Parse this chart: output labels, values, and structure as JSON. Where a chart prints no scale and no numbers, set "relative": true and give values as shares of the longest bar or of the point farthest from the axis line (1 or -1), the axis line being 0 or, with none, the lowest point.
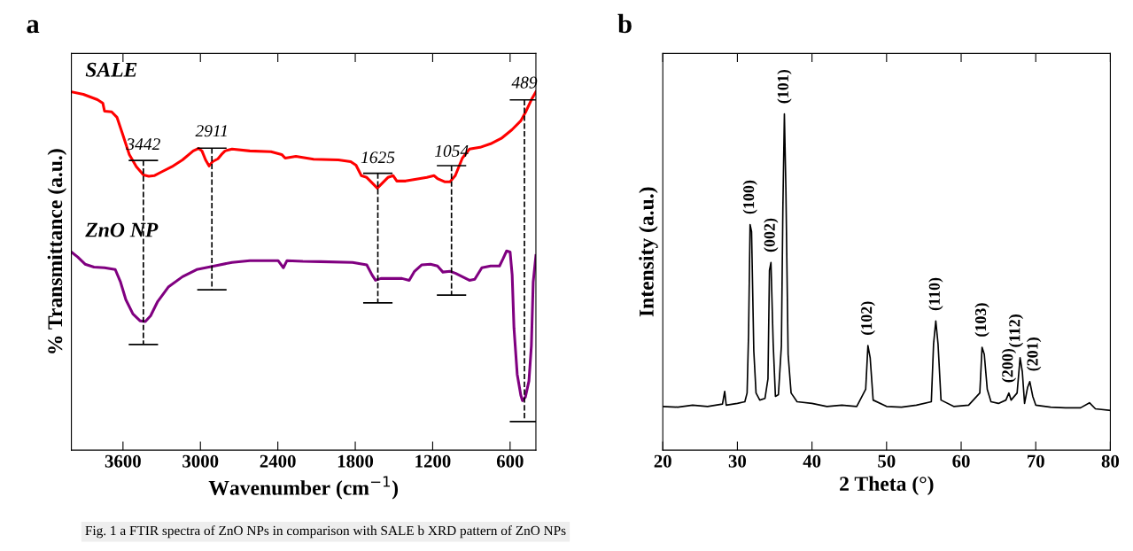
{
  "chart_data": [
    {
      "type": "line",
      "title": "a",
      "xlabel": "Wavenumber (cm$^{−1}$)",
      "ylabel": "% Transmittance (a.u.)",
      "relative": true,
      "tick_labels": "x",
      "grid": false,
      "legend": false,
      "marker": "none",
      "line_style": "solid",
      "xlim": [
        4000,
        400
      ],
      "xticks": [
        3600,
        3000,
        2400,
        1800,
        1200,
        600
      ],
      "series": [
        {
          "name": "SALE",
          "color": "#ff0000",
          "x": [
            4000,
            3907,
            3798,
            3756,
            3743,
            3688,
            3647,
            3605,
            3551,
            3496,
            3441,
            3400,
            3358,
            3304,
            3221,
            3139,
            3056,
            3015,
            2988,
            2960,
            2933,
            2906,
            2864,
            2837,
            2809,
            2755,
            2617,
            2453,
            2370,
            2343,
            2260,
            2123,
            1931,
            1835,
            1794,
            1753,
            1711,
            1670,
            1629,
            1588,
            1547,
            1506,
            1478,
            1410,
            1327,
            1245,
            1190,
            1163,
            1108,
            1066,
            1025,
            970,
            915,
            833,
            751,
            668,
            586,
            517,
            476,
            435,
            400
          ],
          "values": [
            1.0,
            0.993,
            0.978,
            0.968,
            0.946,
            0.944,
            0.929,
            0.884,
            0.825,
            0.791,
            0.768,
            0.764,
            0.766,
            0.776,
            0.791,
            0.81,
            0.835,
            0.842,
            0.835,
            0.81,
            0.793,
            0.805,
            0.813,
            0.825,
            0.835,
            0.84,
            0.835,
            0.833,
            0.825,
            0.815,
            0.82,
            0.812,
            0.81,
            0.805,
            0.795,
            0.766,
            0.761,
            0.746,
            0.731,
            0.746,
            0.761,
            0.766,
            0.751,
            0.751,
            0.756,
            0.761,
            0.766,
            0.758,
            0.749,
            0.749,
            0.766,
            0.815,
            0.84,
            0.845,
            0.855,
            0.87,
            0.894,
            0.919,
            0.946,
            0.978,
            1.0
          ]
        },
        {
          "name": "ZnO NP",
          "color": "#800080",
          "x": [
            4000,
            3951,
            3894,
            3825,
            3743,
            3660,
            3619,
            3578,
            3523,
            3468,
            3427,
            3386,
            3331,
            3249,
            3139,
            3029,
            2892,
            2755,
            2617,
            2398,
            2357,
            2329,
            2206,
            2068,
            1821,
            1711,
            1670,
            1643,
            1602,
            1519,
            1437,
            1382,
            1341,
            1286,
            1217,
            1163,
            1121,
            1066,
            1025,
            970,
            915,
            874,
            819,
            751,
            682,
            655,
            627,
            600,
            584,
            570,
            545,
            517,
            504,
            482,
            454,
            435,
            421,
            400
          ],
          "values": [
            0.553,
            0.539,
            0.519,
            0.511,
            0.509,
            0.504,
            0.469,
            0.42,
            0.38,
            0.361,
            0.359,
            0.375,
            0.415,
            0.455,
            0.484,
            0.504,
            0.514,
            0.524,
            0.529,
            0.529,
            0.509,
            0.529,
            0.527,
            0.526,
            0.524,
            0.517,
            0.489,
            0.474,
            0.479,
            0.479,
            0.479,
            0.474,
            0.499,
            0.517,
            0.519,
            0.514,
            0.497,
            0.499,
            0.494,
            0.484,
            0.474,
            0.477,
            0.509,
            0.514,
            0.514,
            0.534,
            0.556,
            0.553,
            0.489,
            0.341,
            0.212,
            0.153,
            0.138,
            0.148,
            0.193,
            0.292,
            0.469,
            0.543
          ]
        }
      ],
      "ref_lines": [
        {
          "axis": "x",
          "value": 3442,
          "color": "#000000",
          "line_style": "dashed"
        },
        {
          "axis": "x",
          "value": 2911,
          "color": "#000000",
          "line_style": "dashed"
        },
        {
          "axis": "x",
          "value": 1625,
          "color": "#000000",
          "line_style": "dashed"
        },
        {
          "axis": "x",
          "value": 1054,
          "color": "#000000",
          "line_style": "dashed"
        },
        {
          "axis": "x",
          "value": 489,
          "color": "#000000",
          "line_style": "dashed"
        }
      ],
      "annotations": [
        {
          "text": "3442",
          "x": 3442,
          "y": 0.768
        },
        {
          "text": "2911",
          "x": 2911,
          "y": 0.805
        },
        {
          "text": "1625",
          "x": 1625,
          "y": 0.731
        },
        {
          "text": "1054",
          "x": 1054,
          "y": 0.749
        },
        {
          "text": "489",
          "x": 489,
          "y": 0.94
        },
        "Fig. 1 a FTIR spectra of ZnO NPs in comparison with SALE b XRD pattern of ZnO NPs"
      ]
    },
    {
      "type": "line",
      "title": "b",
      "xlabel": "2 Theta (°)",
      "ylabel": "Intensity (a.u.)",
      "relative": true,
      "tick_labels": "x",
      "grid": false,
      "legend": false,
      "marker": "none",
      "line_style": "solid",
      "xlim": [
        20,
        80
      ],
      "xticks": [
        20,
        30,
        40,
        50,
        60,
        70,
        80
      ],
      "series": [
        {
          "color": "#000000",
          "x": [
            20,
            22,
            24,
            26,
            28,
            28.3,
            28.5,
            30,
            31,
            31.3,
            31.5,
            31.7,
            31.9,
            32.2,
            32.5,
            33,
            33.7,
            34.1,
            34.3,
            34.5,
            34.8,
            35.1,
            35.5,
            35.9,
            36.1,
            36.3,
            36.5,
            36.8,
            37.2,
            38,
            40,
            42,
            44,
            46,
            47.2,
            47.5,
            47.8,
            48.2,
            50,
            52,
            54,
            56,
            56.3,
            56.6,
            56.9,
            57.3,
            59,
            61,
            62.5,
            62.8,
            63.1,
            63.5,
            64,
            65,
            66,
            66.4,
            66.7,
            67.5,
            67.9,
            68.2,
            68.5,
            68.9,
            69.2,
            69.6,
            70,
            72,
            74,
            76,
            77.2,
            78,
            80
          ],
          "values": [
            0.13,
            0.128,
            0.134,
            0.13,
            0.137,
            0.175,
            0.134,
            0.139,
            0.144,
            0.17,
            0.348,
            0.671,
            0.65,
            0.295,
            0.17,
            0.149,
            0.154,
            0.212,
            0.535,
            0.558,
            0.316,
            0.16,
            0.165,
            0.311,
            0.723,
            1.0,
            0.781,
            0.285,
            0.17,
            0.144,
            0.139,
            0.13,
            0.134,
            0.13,
            0.181,
            0.311,
            0.275,
            0.149,
            0.13,
            0.128,
            0.134,
            0.144,
            0.316,
            0.384,
            0.316,
            0.149,
            0.13,
            0.134,
            0.17,
            0.306,
            0.285,
            0.181,
            0.144,
            0.139,
            0.149,
            0.17,
            0.149,
            0.17,
            0.275,
            0.233,
            0.139,
            0.186,
            0.204,
            0.16,
            0.134,
            0.128,
            0.126,
            0.126,
            0.141,
            0.123,
            0.118
          ]
        }
      ],
      "annotations": [
        {
          "text": "(100)",
          "x": 31.7,
          "y": 0.671
        },
        {
          "text": "(002)",
          "x": 34.5,
          "y": 0.558
        },
        {
          "text": "(101)",
          "x": 36.3,
          "y": 1.0
        },
        {
          "text": "(102)",
          "x": 47.5,
          "y": 0.311
        },
        {
          "text": "(110)",
          "x": 56.6,
          "y": 0.384
        },
        {
          "text": "(103)",
          "x": 62.8,
          "y": 0.306
        },
        {
          "text": "(200)",
          "x": 66.4,
          "y": 0.17
        },
        {
          "text": "(112)",
          "x": 67.9,
          "y": 0.275
        },
        {
          "text": "(201)",
          "x": 69.2,
          "y": 0.204
        }
      ]
    }
  ]
}
